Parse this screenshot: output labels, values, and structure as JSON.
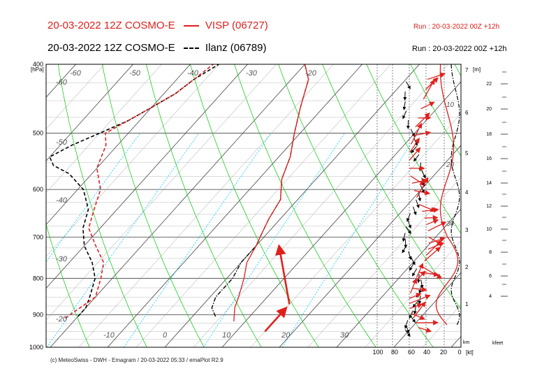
{
  "header": {
    "line1": "20-03-2022 12Z COSMO-E",
    "line1_legend": "VISP (06727)",
    "line2": "20-03-2022 12Z COSMO-E",
    "line2_legend": "Ilanz (06789)",
    "run1": "Run : 20-03-2022 00Z +12h",
    "run2": "Run : 20-03-2022 00Z +12h"
  },
  "footer": "(c) MeteoSwiss - DWH - Emagram / 20-03-2022  05:33 / emaPlot R2.9",
  "colors": {
    "visp": "#e0201c",
    "ilanz": "#000000",
    "dry_adiabat": "#00c800",
    "mixing_ratio": "#00c8ff"
  },
  "chart_data": {
    "type": "line",
    "chart_kind": "emagram",
    "series": [
      {
        "name": "VISP (06727)",
        "color": "#e0201c",
        "line_style": "solid"
      },
      {
        "name": "Ilanz (06789)",
        "color": "#000000",
        "line_style": "dash-dot"
      }
    ],
    "y_axis": {
      "label": "[hPa]",
      "scale": "log",
      "ylim": [
        1000,
        400
      ],
      "ticks": [
        "400",
        "500",
        "600",
        "700",
        "800",
        "900",
        "1000"
      ]
    },
    "temp_top_labels": [
      "-60",
      "-50",
      "-40",
      "-30",
      "-20"
    ],
    "temp_bottom_labels": [
      "-10",
      "0",
      "10",
      "20",
      "30"
    ],
    "temp_left_labels": [
      "-60",
      "-50",
      "-40",
      "-30",
      "-20"
    ],
    "km_axis": {
      "label": "[m]",
      "ticks": [
        "1",
        "2",
        "3",
        "4",
        "5",
        "6",
        "7"
      ]
    },
    "kfeet_axis": {
      "ticks": [
        "4",
        "6",
        "8",
        "10",
        "12",
        "14",
        "16",
        "18",
        "20",
        "22"
      ],
      "label": "kfeet"
    },
    "wind_axis": {
      "ticks": [
        "100",
        "80",
        "60",
        "40",
        "20",
        "0"
      ],
      "unit": "[kt]",
      "side_labels": [
        "10",
        "20",
        "30"
      ],
      "km_label": "km"
    },
    "profiles": {
      "visp_temp": [
        [
          -2,
          920
        ],
        [
          -4,
          880
        ],
        [
          -5,
          850
        ],
        [
          -7,
          800
        ],
        [
          -9,
          760
        ],
        [
          -10,
          720
        ],
        [
          -11,
          690
        ],
        [
          -12,
          660
        ],
        [
          -13,
          620
        ],
        [
          -16,
          580
        ],
        [
          -18,
          540
        ],
        [
          -21,
          500
        ],
        [
          -24,
          460
        ],
        [
          -27,
          420
        ],
        [
          -30,
          400
        ]
      ],
      "visp_dew": [
        [
          -32,
          910
        ],
        [
          -31,
          880
        ],
        [
          -30,
          850
        ],
        [
          -32,
          800
        ],
        [
          -34,
          760
        ],
        [
          -38,
          720
        ],
        [
          -42,
          680
        ],
        [
          -44,
          640
        ],
        [
          -46,
          600
        ],
        [
          -50,
          560
        ],
        [
          -52,
          520
        ],
        [
          -54,
          500
        ],
        [
          -52,
          480
        ],
        [
          -50,
          460
        ],
        [
          -48,
          440
        ],
        [
          -47,
          420
        ],
        [
          -46,
          400
        ]
      ],
      "ilanz_temp": [
        [
          -6,
          905
        ],
        [
          -8,
          880
        ],
        [
          -9,
          850
        ],
        [
          -9,
          800
        ],
        [
          -10,
          760
        ],
        [
          -10,
          720
        ],
        [
          -11,
          690
        ],
        [
          -12,
          660
        ],
        [
          -13,
          620
        ],
        [
          -16,
          580
        ],
        [
          -18,
          540
        ],
        [
          -21,
          500
        ],
        [
          -24,
          460
        ],
        [
          -27,
          420
        ],
        [
          -30,
          400
        ]
      ],
      "ilanz_dew": [
        [
          -30,
          905
        ],
        [
          -30,
          880
        ],
        [
          -31,
          850
        ],
        [
          -33,
          800
        ],
        [
          -36,
          760
        ],
        [
          -40,
          720
        ],
        [
          -43,
          680
        ],
        [
          -45,
          640
        ],
        [
          -49,
          600
        ],
        [
          -54,
          570
        ],
        [
          -58,
          555
        ],
        [
          -60,
          540
        ],
        [
          -58,
          520
        ],
        [
          -55,
          500
        ],
        [
          -52,
          480
        ],
        [
          -50,
          460
        ],
        [
          -48,
          440
        ],
        [
          -47,
          420
        ],
        [
          -45,
          400
        ]
      ],
      "parcel_arrows": [
        [
          [
            5,
            950
          ],
          [
            5,
            880
          ]
        ],
        [
          [
            5,
            870
          ],
          [
            -6,
            720
          ]
        ]
      ]
    }
  }
}
